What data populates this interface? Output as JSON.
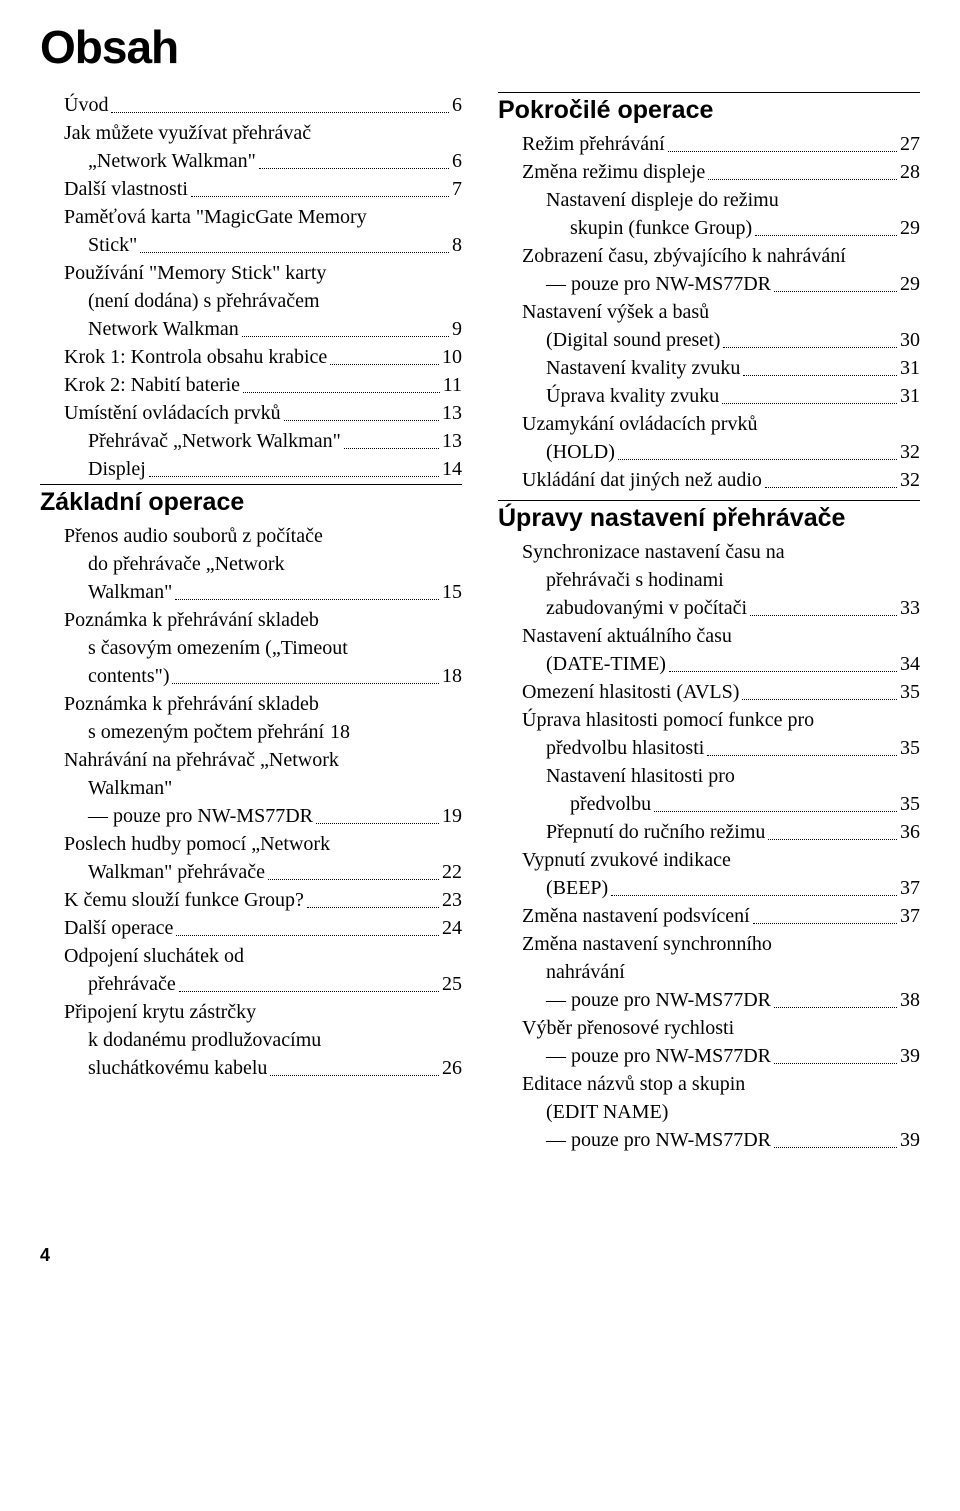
{
  "title": "Obsah",
  "page_number": "4",
  "colors": {
    "text": "#000000",
    "background": "#ffffff"
  },
  "typography": {
    "title_font": "Arial",
    "title_size_pt": 34,
    "title_weight": 900,
    "section_font": "Arial",
    "section_size_pt": 19,
    "section_weight": 900,
    "body_font": "Georgia",
    "body_size_pt": 15
  },
  "left": {
    "items": [
      {
        "lines": [
          "Úvod"
        ],
        "page": "6",
        "indent": 1
      },
      {
        "lines": [
          "Jak můžete využívat přehrávač",
          "„Network Walkman\""
        ],
        "page": "6",
        "indent": 1,
        "cont_indent": 2
      },
      {
        "lines": [
          "Další vlastnosti"
        ],
        "page": "7",
        "indent": 1
      },
      {
        "lines": [
          "Paměťová karta \"MagicGate Memory",
          "Stick\""
        ],
        "page": "8",
        "indent": 1,
        "cont_indent": 2
      },
      {
        "lines": [
          "Používání \"Memory Stick\" karty",
          "(není dodána) s přehrávačem",
          "Network Walkman"
        ],
        "page": "9",
        "indent": 1,
        "cont_indent": 2
      },
      {
        "lines": [
          "Krok 1: Kontrola obsahu krabice"
        ],
        "page": "10",
        "indent": 1
      },
      {
        "lines": [
          "Krok 2: Nabití baterie"
        ],
        "page": "11",
        "indent": 1
      },
      {
        "lines": [
          "Umístění ovládacích prvků"
        ],
        "page": "13",
        "indent": 1
      },
      {
        "lines": [
          "Přehrávač „Network Walkman\""
        ],
        "page": "13",
        "indent": 2
      },
      {
        "lines": [
          "Displej"
        ],
        "page": "14",
        "indent": 2
      }
    ],
    "section": "Základní operace",
    "section_items": [
      {
        "lines": [
          "Přenos audio souborů z počítače",
          "do přehrávače „Network",
          "Walkman\""
        ],
        "page": "15",
        "indent": 1,
        "cont_indent": 2
      },
      {
        "lines": [
          "Poznámka k přehrávání skladeb",
          "s časovým omezením („Timeout",
          "contents\")"
        ],
        "page": "18",
        "indent": 1,
        "cont_indent": 2
      },
      {
        "lines": [
          "Poznámka k přehrávání skladeb",
          "s omezeným počtem přehrání"
        ],
        "page": "18",
        "indent": 1,
        "cont_indent": 2,
        "nodots": true
      },
      {
        "lines": [
          "Nahrávání na přehrávač „Network",
          "Walkman\"",
          "— pouze pro NW-MS77DR"
        ],
        "page": "19",
        "indent": 1,
        "cont_indent": 2
      },
      {
        "lines": [
          "Poslech hudby pomocí „Network",
          "Walkman\" přehrávače"
        ],
        "page": "22",
        "indent": 1,
        "cont_indent": 2
      },
      {
        "lines": [
          "K čemu slouží funkce Group?"
        ],
        "page": "23",
        "indent": 1
      },
      {
        "lines": [
          "Další operace"
        ],
        "page": "24",
        "indent": 1
      },
      {
        "lines": [
          "Odpojení sluchátek od",
          "přehrávače"
        ],
        "page": "25",
        "indent": 1,
        "cont_indent": 2
      },
      {
        "lines": [
          "Připojení krytu zástrčky",
          "k dodanému prodlužovacímu",
          "sluchátkovému kabelu"
        ],
        "page": "26",
        "indent": 1,
        "cont_indent": 2
      }
    ]
  },
  "right": {
    "section1": "Pokročilé operace",
    "items1": [
      {
        "lines": [
          "Režim přehrávání"
        ],
        "page": "27",
        "indent": 1
      },
      {
        "lines": [
          "Změna režimu displeje"
        ],
        "page": "28",
        "indent": 1
      },
      {
        "lines": [
          "Nastavení displeje do režimu",
          "skupin (funkce Group)"
        ],
        "page": "29",
        "indent": 2,
        "cont_indent": 3
      },
      {
        "lines": [
          "Zobrazení času, zbývajícího k nahrávání",
          "— pouze pro NW-MS77DR"
        ],
        "page": "29",
        "indent": 1,
        "cont_indent": 2
      },
      {
        "lines": [
          "Nastavení výšek a basů",
          "(Digital sound preset)"
        ],
        "page": "30",
        "indent": 1,
        "cont_indent": 2
      },
      {
        "lines": [
          "Nastavení kvality zvuku"
        ],
        "page": "31",
        "indent": 2
      },
      {
        "lines": [
          "Úprava kvality zvuku"
        ],
        "page": "31",
        "indent": 2
      },
      {
        "lines": [
          "Uzamykání ovládacích prvků",
          "(HOLD)"
        ],
        "page": "32",
        "indent": 1,
        "cont_indent": 2
      },
      {
        "lines": [
          "Ukládání dat jiných než audio"
        ],
        "page": "32",
        "indent": 1
      }
    ],
    "section2": "Úpravy nastavení přehrávače",
    "items2": [
      {
        "lines": [
          "Synchronizace nastavení času na",
          "přehrávači s hodinami",
          "zabudovanými v počítači"
        ],
        "page": "33",
        "indent": 1,
        "cont_indent": 2
      },
      {
        "lines": [
          "Nastavení aktuálního času",
          "(DATE-TIME)"
        ],
        "page": "34",
        "indent": 1,
        "cont_indent": 2
      },
      {
        "lines": [
          "Omezení hlasitosti  (AVLS)"
        ],
        "page": "35",
        "indent": 1
      },
      {
        "lines": [
          "Úprava hlasitosti pomocí funkce pro",
          "předvolbu hlasitosti"
        ],
        "page": "35",
        "indent": 1,
        "cont_indent": 2
      },
      {
        "lines": [
          "Nastavení hlasitosti pro",
          "předvolbu"
        ],
        "page": "35",
        "indent": 2,
        "cont_indent": 3
      },
      {
        "lines": [
          "Přepnutí do ručního režimu"
        ],
        "page": "36",
        "indent": 2
      },
      {
        "lines": [
          "Vypnutí zvukové indikace",
          "(BEEP)"
        ],
        "page": "37",
        "indent": 1,
        "cont_indent": 2
      },
      {
        "lines": [
          "Změna nastavení podsvícení"
        ],
        "page": "37",
        "indent": 1
      },
      {
        "lines": [
          "Změna nastavení synchronního",
          "nahrávání",
          "— pouze pro NW-MS77DR"
        ],
        "page": "38",
        "indent": 1,
        "cont_indent": 2
      },
      {
        "lines": [
          "Výběr přenosové rychlosti",
          "— pouze pro NW-MS77DR"
        ],
        "page": "39",
        "indent": 1,
        "cont_indent": 2
      },
      {
        "lines": [
          "Editace názvů stop a skupin",
          "(EDIT NAME)",
          "— pouze pro NW-MS77DR"
        ],
        "page": "39",
        "indent": 1,
        "cont_indent": 2
      }
    ]
  }
}
